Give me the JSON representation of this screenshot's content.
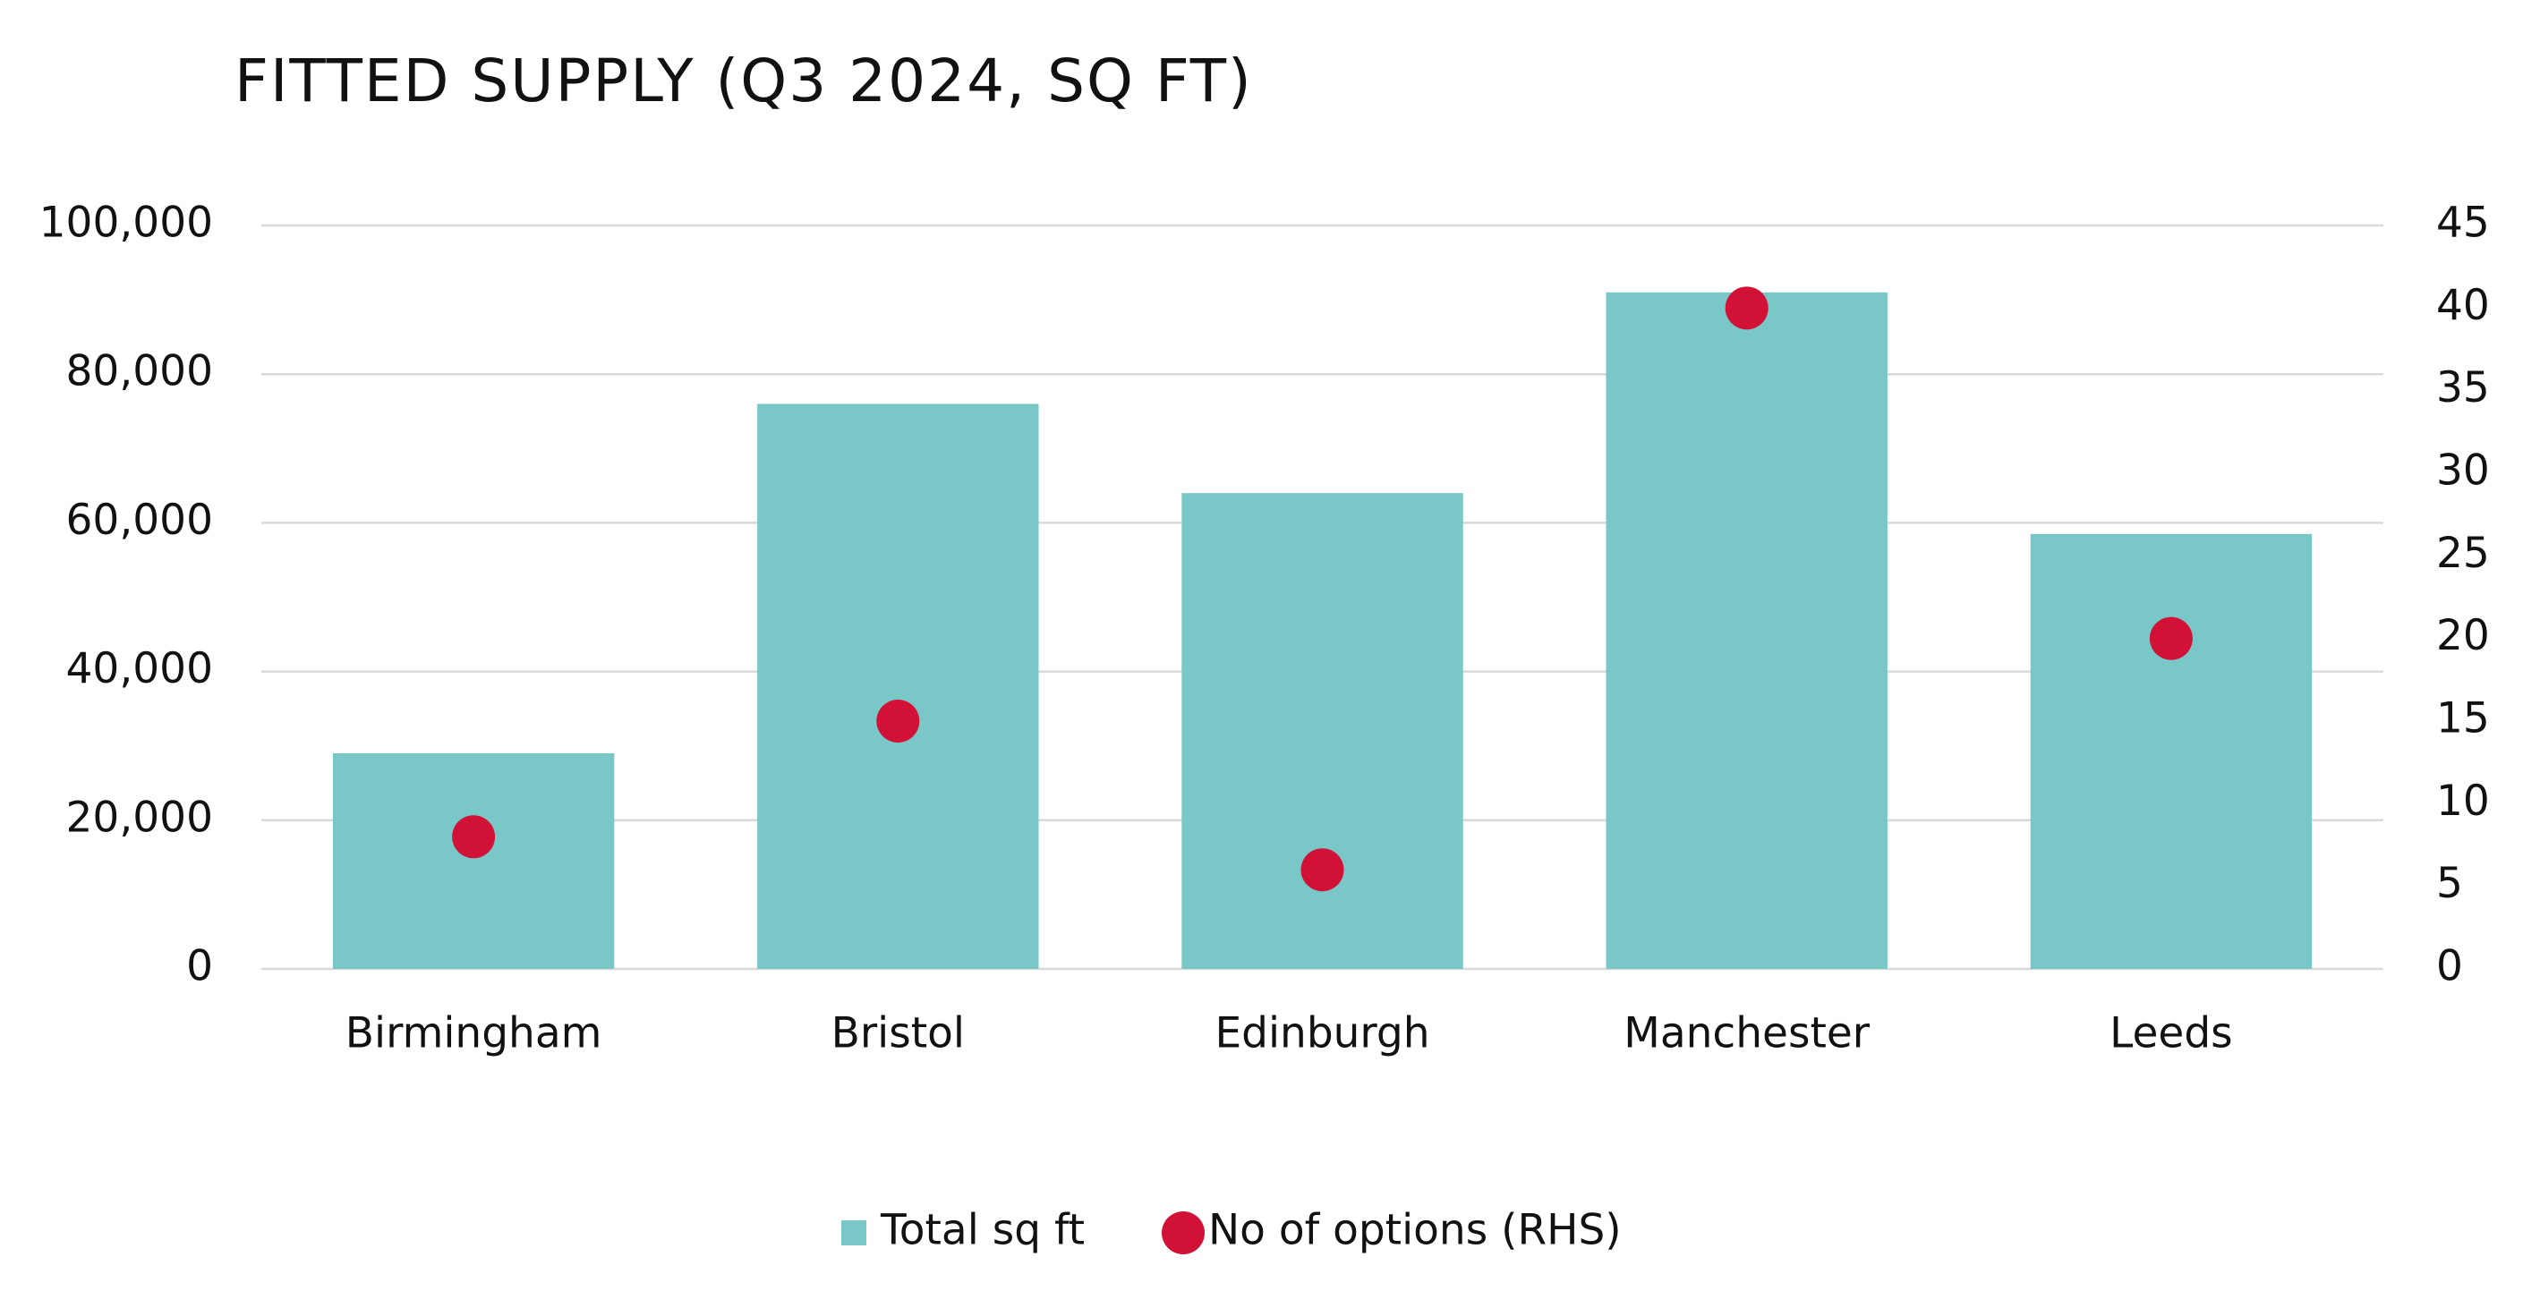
{
  "chart_data": {
    "type": "bar",
    "title": "FITTED SUPPLY (Q3 2024, SQ FT)",
    "categories": [
      "Birmingham",
      "Bristol",
      "Edinburgh",
      "Manchester",
      "Leeds"
    ],
    "series": [
      {
        "name": "Total sq ft",
        "type": "bar",
        "color": "#7ac7c8",
        "values": [
          29000,
          76000,
          64000,
          91000,
          58500
        ]
      },
      {
        "name": "No of options (RHS)",
        "type": "scatter",
        "axis": "y2",
        "color": "#d11236",
        "values": [
          8,
          15,
          6,
          40,
          20
        ]
      }
    ],
    "ylim": [
      0,
      100000
    ],
    "yticks": [
      0,
      {
        "value": 20000,
        "label": "20,000"
      },
      {
        "value": 40000,
        "label": "40,000"
      },
      {
        "value": 60000,
        "label": "60,000"
      },
      {
        "value": 80000,
        "label": "80,000"
      },
      {
        "value": 100000,
        "label": "100,000"
      }
    ],
    "y2lim": [
      0,
      45
    ],
    "y2ticks": [
      0,
      5,
      10,
      15,
      20,
      25,
      30,
      35,
      40,
      45
    ],
    "grid": true,
    "legend": "bottom"
  }
}
